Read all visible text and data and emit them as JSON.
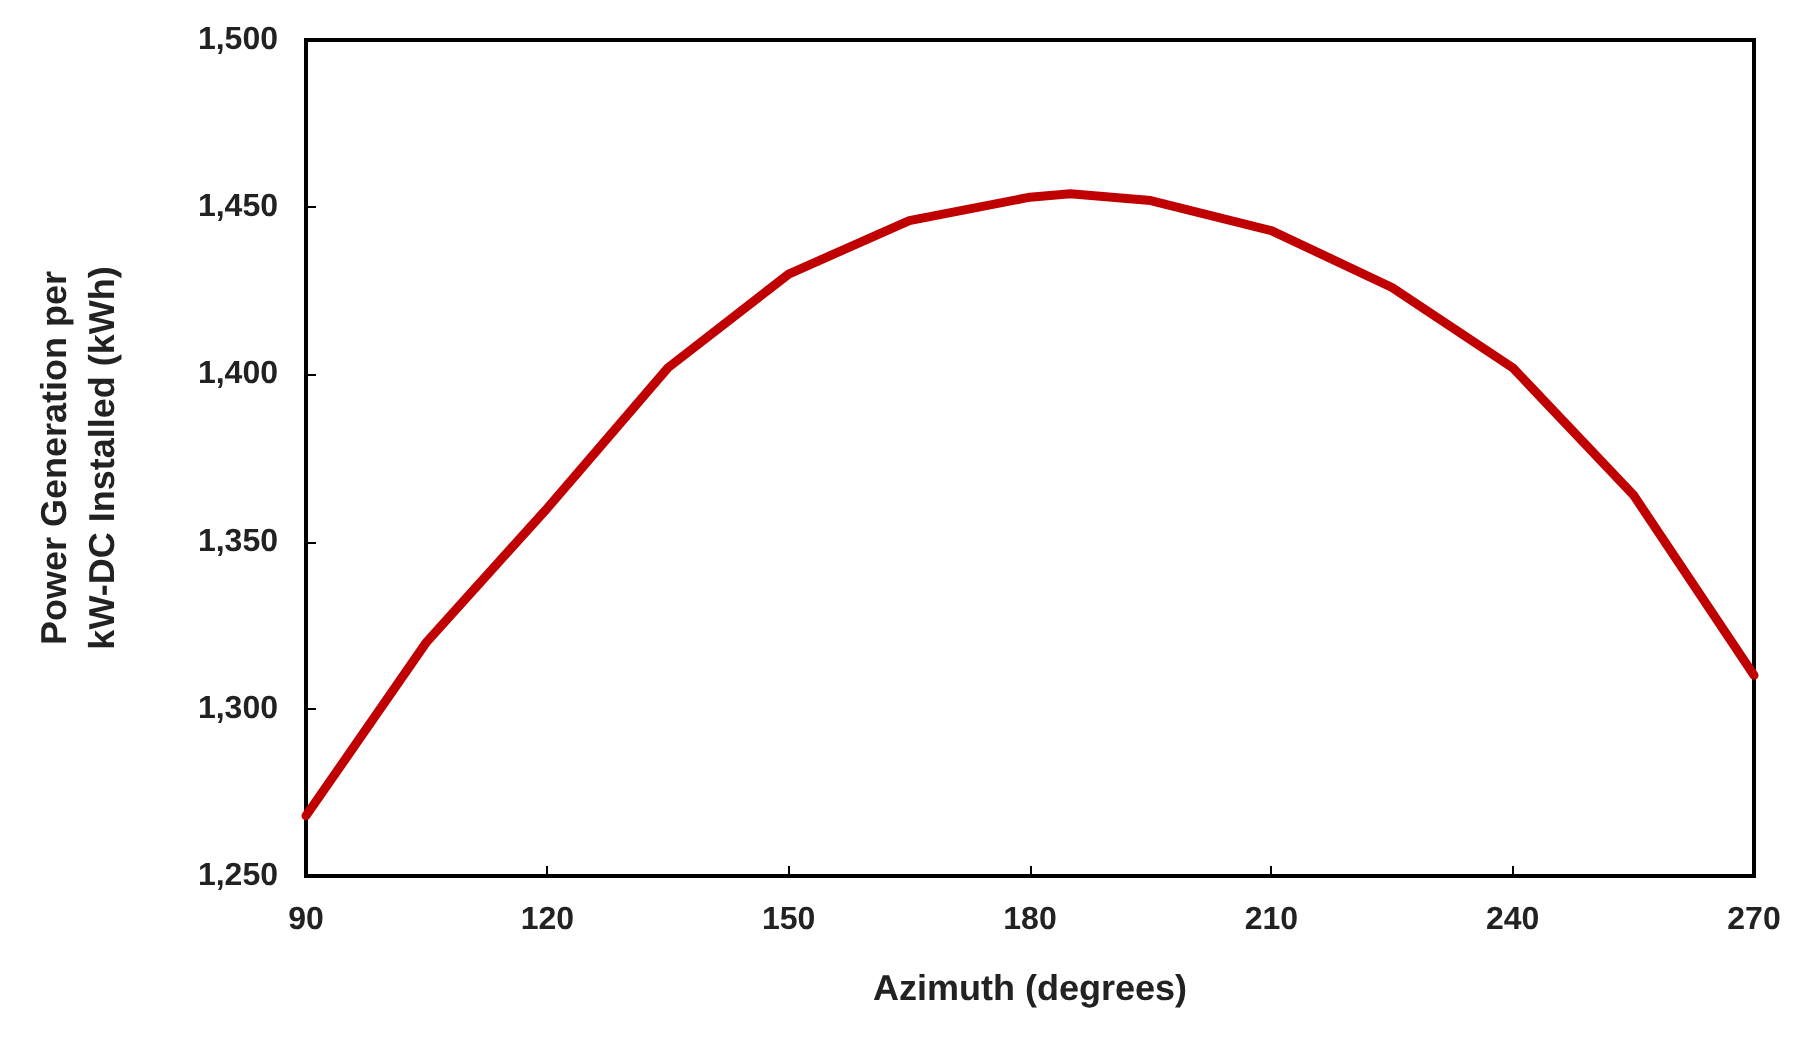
{
  "chart_data": {
    "type": "line",
    "xlabel": "Azimuth (degrees)",
    "ylabel": "Power Generation per\nkW-DC Installed (kWh)",
    "x": [
      90,
      105,
      120,
      135,
      150,
      165,
      180,
      185,
      195,
      210,
      225,
      240,
      255,
      270
    ],
    "series": [
      {
        "color": "#c00000",
        "values": [
          1268,
          1320,
          1360,
          1402,
          1430,
          1446,
          1453,
          1454,
          1452,
          1443,
          1426,
          1402,
          1364,
          1310
        ]
      }
    ],
    "xlim": [
      90,
      270
    ],
    "xticks": [
      90,
      120,
      150,
      180,
      210,
      240,
      270
    ],
    "ylim": [
      1250,
      1500
    ],
    "yticks": [
      {
        "value": 1250,
        "label": "1,250"
      },
      {
        "value": 1300,
        "label": "1,300"
      },
      {
        "value": 1350,
        "label": "1,350"
      },
      {
        "value": 1400,
        "label": "1,400"
      },
      {
        "value": 1450,
        "label": "1,450"
      },
      {
        "value": 1500,
        "label": "1,500"
      }
    ],
    "grid": false,
    "marker": "none",
    "line_style": "solid"
  }
}
